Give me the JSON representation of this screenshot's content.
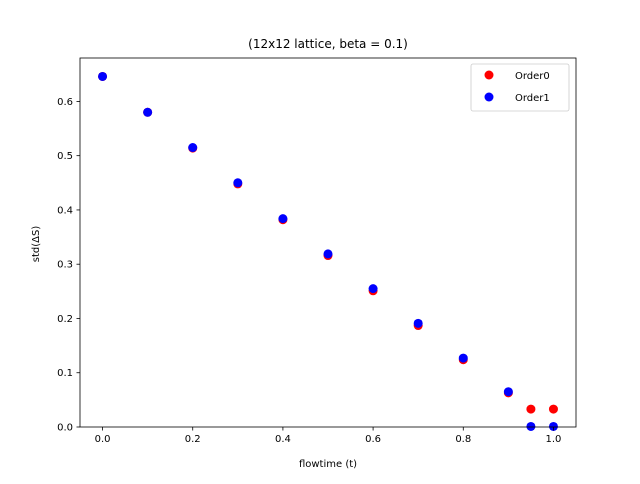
{
  "chart_data": {
    "type": "scatter",
    "title": "(12x12 lattice, beta = 0.1)",
    "xlabel": "flowtime (t)",
    "ylabel": "std(ΔS)",
    "xlim": [
      -0.05,
      1.05
    ],
    "ylim": [
      0.0,
      0.68
    ],
    "xticks": [
      "0.0",
      "0.2",
      "0.4",
      "0.6",
      "0.8",
      "1.0"
    ],
    "yticks": [
      "0.0",
      "0.1",
      "0.2",
      "0.3",
      "0.4",
      "0.5",
      "0.6"
    ],
    "grid": false,
    "legend_position": "top-right",
    "series": [
      {
        "name": "Order0",
        "color": "#ff0000",
        "x": [
          0.0,
          0.1,
          0.2,
          0.3,
          0.4,
          0.5,
          0.6,
          0.7,
          0.8,
          0.9,
          0.95,
          1.0
        ],
        "y": [
          0.646,
          0.58,
          0.514,
          0.448,
          0.382,
          0.316,
          0.251,
          0.187,
          0.124,
          0.063,
          0.033,
          0.033
        ]
      },
      {
        "name": "Order1",
        "color": "#0000ff",
        "x": [
          0.0,
          0.1,
          0.2,
          0.3,
          0.4,
          0.5,
          0.6,
          0.7,
          0.8,
          0.9,
          0.95,
          1.0
        ],
        "y": [
          0.646,
          0.58,
          0.515,
          0.45,
          0.384,
          0.319,
          0.255,
          0.191,
          0.127,
          0.065,
          0.001,
          0.001
        ]
      }
    ]
  }
}
